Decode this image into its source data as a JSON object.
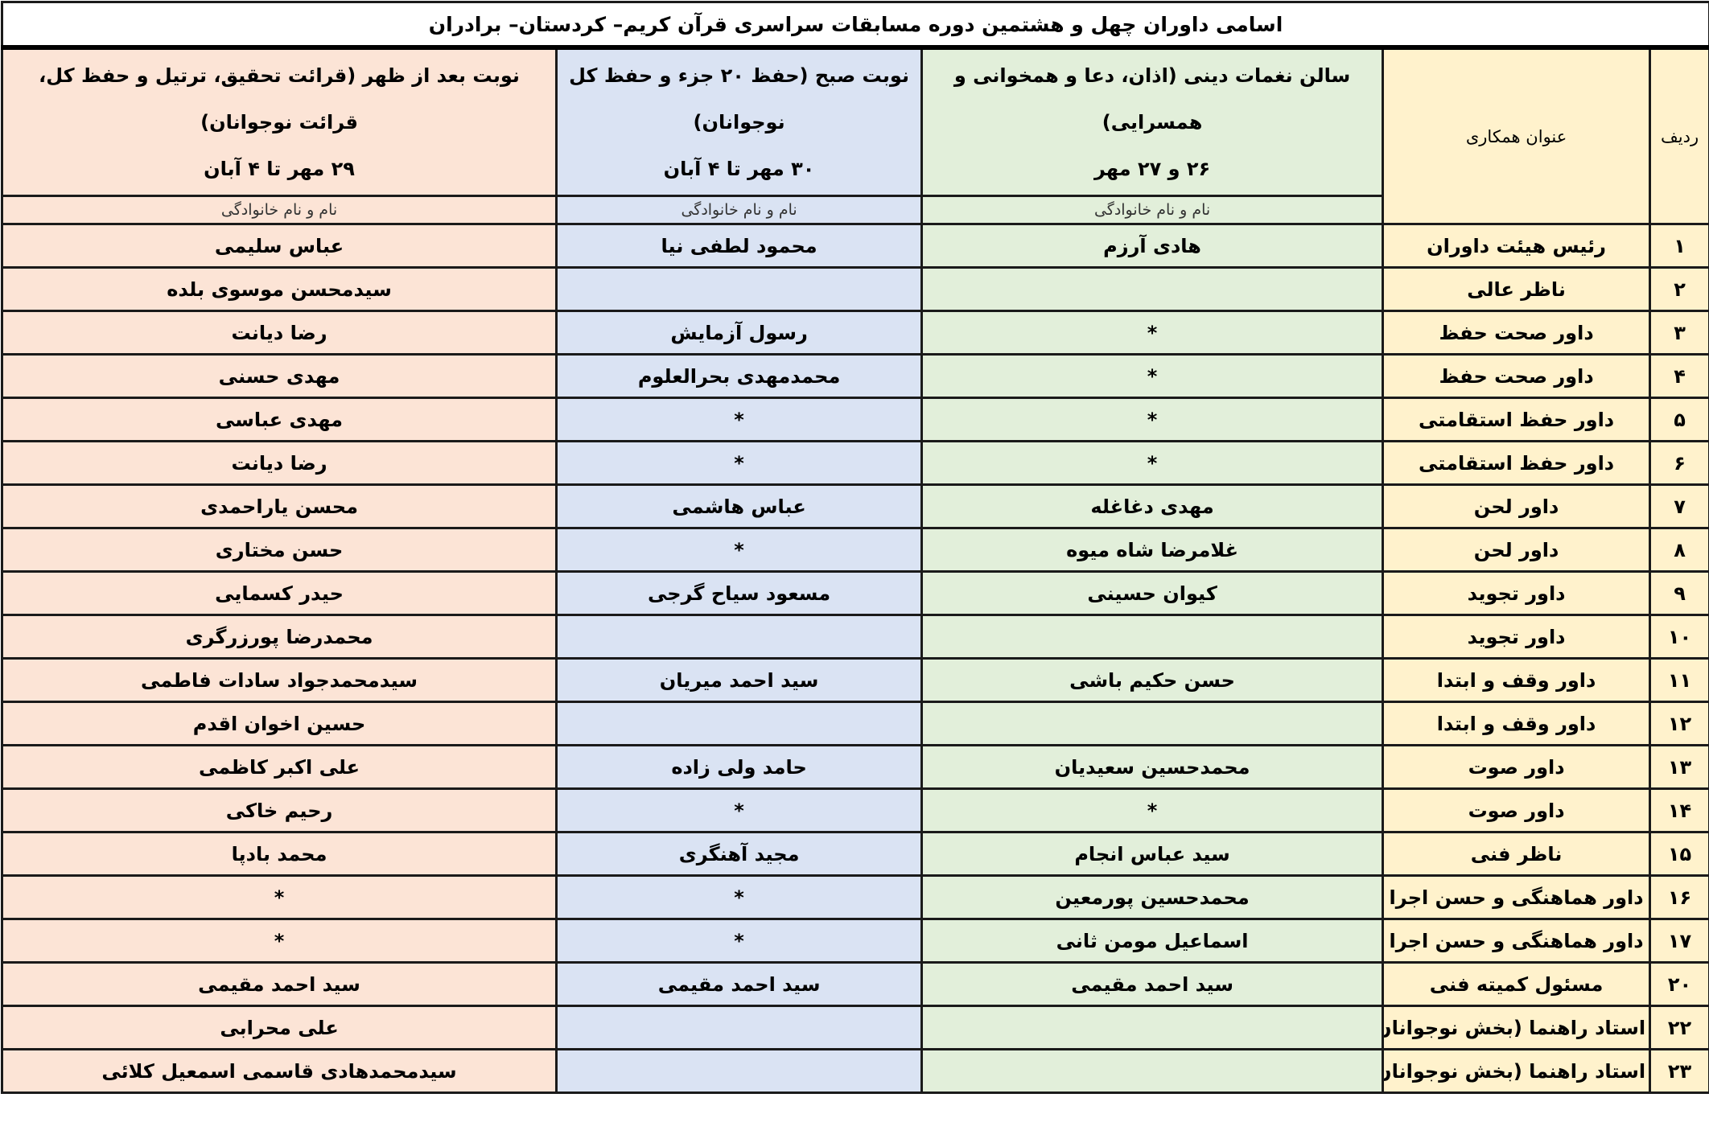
{
  "title": "اسامی داوران چهل و هشتمین دوره مسابقات سراسری قرآن کریم– کردستان– برادران",
  "headers": {
    "row_no": "ردیف",
    "role": "عنوان همکاری",
    "hall": {
      "line1": "سالن نغمات دینی (اذان، دعا و همخوانی و همسرایی)",
      "line2": "۲۶ و ۲۷ مهر"
    },
    "morning": {
      "line1": "نوبت صبح (حفظ ۲۰ جزء و حفظ کل نوجوانان)",
      "line2": "۳۰ مهر تا ۴ آبان"
    },
    "afternoon": {
      "line1": "نوبت بعد از ظهر (قرائت تحقیق، ترتیل و حفظ کل، قرائت نوجوانان)",
      "line2": "۲۹ مهر تا ۴ آبان"
    },
    "name_sub": "نام و نام خانوادگی"
  },
  "colors": {
    "yellow": "#fff2cc",
    "green": "#e2efda",
    "blue": "#dae3f3",
    "peach": "#fce4d6"
  },
  "rows": [
    {
      "no": "۱",
      "role": "رئیس هیئت داوران",
      "hall": "هادی آرزم",
      "morning": "محمود لطفی نیا",
      "afternoon": "عباس سلیمی"
    },
    {
      "no": "۲",
      "role": "ناظر عالی",
      "hall": "",
      "morning": "",
      "afternoon": "سیدمحسن موسوی بلده"
    },
    {
      "no": "۳",
      "role": "داور صحت حفظ",
      "hall": "*",
      "morning": "رسول آزمایش",
      "afternoon": "رضا دیانت"
    },
    {
      "no": "۴",
      "role": "داور صحت حفظ",
      "hall": "*",
      "morning": "محمدمهدی بحرالعلوم",
      "afternoon": "مهدی حسنی"
    },
    {
      "no": "۵",
      "role": "داور حفظ استقامتی",
      "hall": "*",
      "morning": "*",
      "afternoon": "مهدی عباسی"
    },
    {
      "no": "۶",
      "role": "داور حفظ استقامتی",
      "hall": "*",
      "morning": "*",
      "afternoon": "رضا دیانت"
    },
    {
      "no": "۷",
      "role": "داور لحن",
      "hall": "مهدی دغاغله",
      "morning": "عباس هاشمی",
      "afternoon": "محسن یاراحمدی"
    },
    {
      "no": "۸",
      "role": "داور لحن",
      "hall": "غلامرضا شاه میوه",
      "morning": "*",
      "afternoon": "حسن مختاری"
    },
    {
      "no": "۹",
      "role": "داور تجوید",
      "hall": "کیوان حسینی",
      "morning": "مسعود سیاح گرجی",
      "afternoon": "حیدر کسمایی"
    },
    {
      "no": "۱۰",
      "role": "داور تجوید",
      "hall": "",
      "morning": "",
      "afternoon": "محمدرضا پورزرگری"
    },
    {
      "no": "۱۱",
      "role": "داور وقف و ابتدا",
      "hall": "حسن حکیم باشی",
      "morning": "سید احمد میریان",
      "afternoon": "سیدمحمدجواد سادات فاطمی"
    },
    {
      "no": "۱۲",
      "role": "داور وقف و ابتدا",
      "hall": "",
      "morning": "",
      "afternoon": "حسین اخوان اقدم"
    },
    {
      "no": "۱۳",
      "role": "داور صوت",
      "hall": "محمدحسین سعیدیان",
      "morning": "حامد ولی زاده",
      "afternoon": "علی اکبر کاظمی"
    },
    {
      "no": "۱۴",
      "role": "داور صوت",
      "hall": "*",
      "morning": "*",
      "afternoon": "رحیم خاکی"
    },
    {
      "no": "۱۵",
      "role": "ناظر فنی",
      "hall": "سید عباس انجام",
      "morning": "مجید آهنگری",
      "afternoon": "محمد بادپا"
    },
    {
      "no": "۱۶",
      "role": "داور هماهنگی و حسن اجرا",
      "hall": "محمدحسین پورمعین",
      "morning": "*",
      "afternoon": "*"
    },
    {
      "no": "۱۷",
      "role": "داور هماهنگی و حسن اجرا",
      "hall": "اسماعیل مومن ثانی",
      "morning": "*",
      "afternoon": "*"
    },
    {
      "no": "۲۰",
      "role": "مسئول کمیته فنی",
      "hall": "سید احمد مقیمی",
      "morning": "سید احمد مقیمی",
      "afternoon": "سید احمد مقیمی"
    },
    {
      "no": "۲۲",
      "role": "استاد راهنما (بخش نوجوانان)",
      "hall": "",
      "morning": "",
      "afternoon": "علی محرابی"
    },
    {
      "no": "۲۳",
      "role": "استاد راهنما (بخش نوجوانان)",
      "hall": "",
      "morning": "",
      "afternoon": "سیدمحمدهادی قاسمی اسمعیل کلائی"
    }
  ]
}
